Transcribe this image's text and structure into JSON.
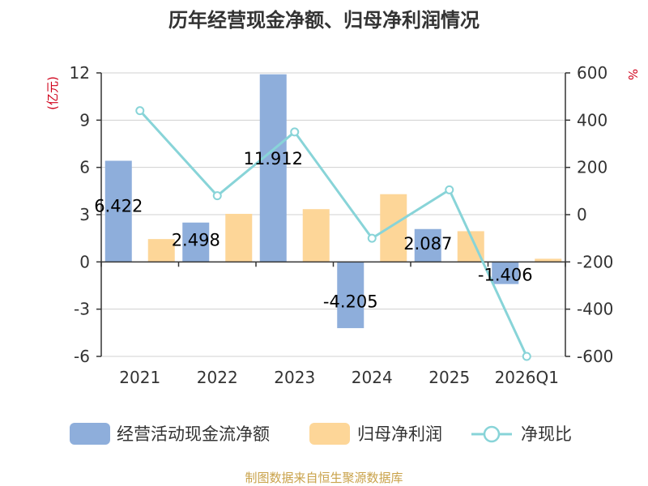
{
  "chart_data": {
    "type": "bar",
    "title": "历年经营现金净额、归母净利润情况",
    "categories": [
      "2021",
      "2022",
      "2023",
      "2024",
      "2025",
      "2026Q1"
    ],
    "left_axis": {
      "label": "(亿元)",
      "ylim": [
        -6,
        12
      ],
      "ticks": [
        "12",
        "9",
        "6",
        "3",
        "0",
        "-3",
        "-6"
      ]
    },
    "right_axis": {
      "label": "%",
      "ylim": [
        -600,
        600
      ],
      "ticks": [
        "600",
        "400",
        "200",
        "0",
        "-200",
        "-400",
        "-600"
      ]
    },
    "series": [
      {
        "name": "经营活动现金流净额",
        "kind": "bar",
        "axis": "left",
        "color": "#8eaedb",
        "values": [
          6.422,
          2.498,
          11.912,
          -4.205,
          2.087,
          -1.406
        ],
        "labels": [
          "6.422",
          "2.498",
          "11.912",
          "-4.205",
          "2.087",
          "-1.406"
        ]
      },
      {
        "name": "归母净利润",
        "kind": "bar",
        "axis": "left",
        "color": "#fdd698",
        "values": [
          1.45,
          3.05,
          3.35,
          4.3,
          1.95,
          0.2
        ]
      },
      {
        "name": "净现比",
        "kind": "line",
        "axis": "right",
        "color": "#88d4d8",
        "values": [
          440,
          80,
          350,
          -100,
          105,
          -600
        ]
      }
    ],
    "grid": true,
    "legend_position": "bottom"
  },
  "source": {
    "text": "制图数据来自恒生聚源数据库",
    "color": "#c9a24a"
  }
}
